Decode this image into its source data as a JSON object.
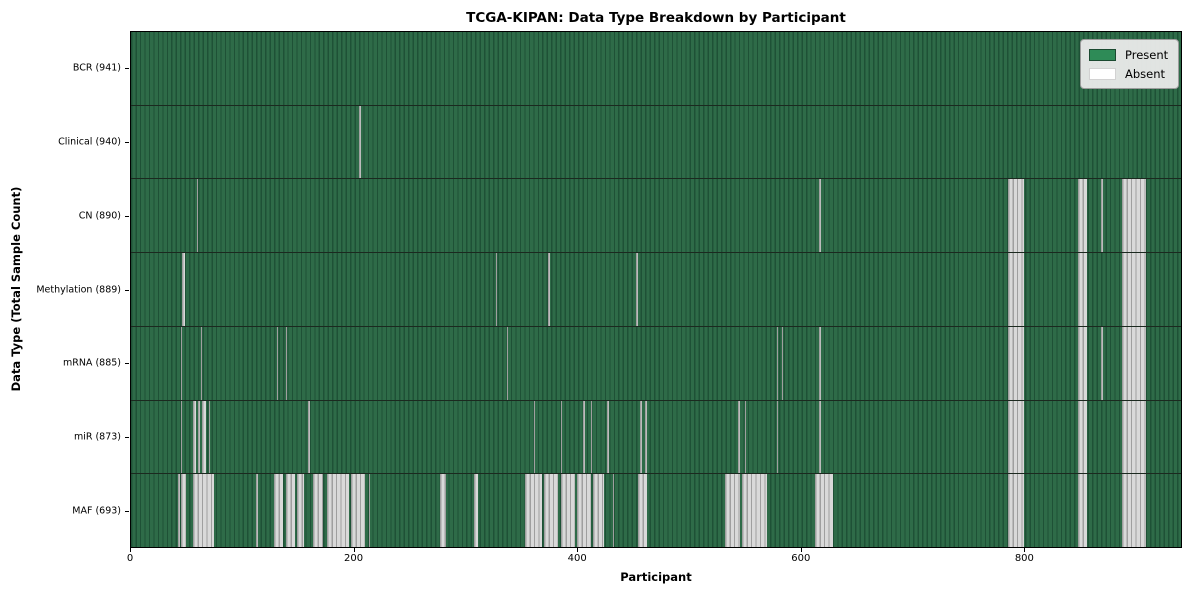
{
  "figure": {
    "title": "TCGA-KIPAN: Data Type Breakdown by Participant",
    "x_axis": {
      "label": "Participant",
      "ticks": [
        0,
        200,
        400,
        600,
        800
      ],
      "max": 941
    },
    "y_axis": {
      "label": "Data Type (Total Sample Count)"
    },
    "legend": {
      "present_label": "Present",
      "absent_label": "Absent"
    }
  },
  "colors": {
    "present_legend": "#2e8b57",
    "present_stripe_light": "#2e6b48",
    "present_stripe_dark": "#1e5136",
    "absent_legend": "#ffffff",
    "absent_stripe_light": "#d9d9d9",
    "absent_stripe_dark": "#9f9f9f",
    "row_separator": "#1b291f",
    "spine": "#000000"
  },
  "chart_data": {
    "type": "heatmap",
    "title": "TCGA-KIPAN: Data Type Breakdown by Participant",
    "xlabel": "Participant",
    "ylabel": "Data Type (Total Sample Count)",
    "x_range": [
      0,
      941
    ],
    "x_ticks": [
      0,
      200,
      400,
      600,
      800
    ],
    "n_participants": 941,
    "legend_entries": [
      "Present",
      "Absent"
    ],
    "legend_position": "upper right",
    "rows": [
      {
        "label": "BCR (941)",
        "data_type": "BCR",
        "total_sample_count": 941,
        "absent_ranges": []
      },
      {
        "label": "Clinical (940)",
        "data_type": "Clinical",
        "total_sample_count": 940,
        "absent_ranges": [
          [
            204,
            206
          ]
        ]
      },
      {
        "label": "CN (890)",
        "data_type": "CN",
        "total_sample_count": 890,
        "absent_ranges": [
          [
            59,
            60
          ],
          [
            617,
            618
          ],
          [
            786,
            800
          ],
          [
            849,
            857
          ],
          [
            869,
            871
          ],
          [
            888,
            910
          ]
        ]
      },
      {
        "label": "Methylation (889)",
        "data_type": "Methylation",
        "total_sample_count": 889,
        "absent_ranges": [
          [
            46,
            48
          ],
          [
            327,
            328
          ],
          [
            374,
            375
          ],
          [
            453,
            454
          ],
          [
            786,
            800
          ],
          [
            849,
            857
          ],
          [
            888,
            910
          ]
        ]
      },
      {
        "label": "mRNA (885)",
        "data_type": "mRNA",
        "total_sample_count": 885,
        "absent_ranges": [
          [
            45,
            46
          ],
          [
            63,
            64
          ],
          [
            131,
            132
          ],
          [
            139,
            140
          ],
          [
            337,
            338
          ],
          [
            579,
            580
          ],
          [
            583,
            584
          ],
          [
            617,
            618
          ],
          [
            786,
            800
          ],
          [
            849,
            857
          ],
          [
            869,
            871
          ],
          [
            888,
            910
          ]
        ]
      },
      {
        "label": "miR (873)",
        "data_type": "miR",
        "total_sample_count": 873,
        "absent_ranges": [
          [
            45,
            46
          ],
          [
            56,
            58
          ],
          [
            60,
            62
          ],
          [
            64,
            67
          ],
          [
            70,
            71
          ],
          [
            159,
            160
          ],
          [
            361,
            362
          ],
          [
            385,
            386
          ],
          [
            405,
            407
          ],
          [
            412,
            413
          ],
          [
            427,
            428
          ],
          [
            456,
            458
          ],
          [
            461,
            462
          ],
          [
            544,
            546
          ],
          [
            550,
            551
          ],
          [
            579,
            580
          ],
          [
            617,
            618
          ],
          [
            786,
            800
          ],
          [
            849,
            857
          ],
          [
            888,
            910
          ]
        ]
      },
      {
        "label": "MAF (693)",
        "data_type": "MAF",
        "total_sample_count": 693,
        "absent_ranges": [
          [
            42,
            44
          ],
          [
            45,
            49
          ],
          [
            56,
            74
          ],
          [
            112,
            114
          ],
          [
            128,
            136
          ],
          [
            139,
            147
          ],
          [
            149,
            155
          ],
          [
            163,
            172
          ],
          [
            176,
            195
          ],
          [
            197,
            210
          ],
          [
            213,
            214
          ],
          [
            277,
            282
          ],
          [
            307,
            311
          ],
          [
            353,
            368
          ],
          [
            370,
            383
          ],
          [
            385,
            398
          ],
          [
            400,
            412
          ],
          [
            414,
            424
          ],
          [
            432,
            433
          ],
          [
            454,
            462
          ],
          [
            532,
            546
          ],
          [
            548,
            570
          ],
          [
            613,
            629
          ],
          [
            786,
            800
          ],
          [
            849,
            857
          ],
          [
            888,
            910
          ]
        ]
      }
    ]
  }
}
